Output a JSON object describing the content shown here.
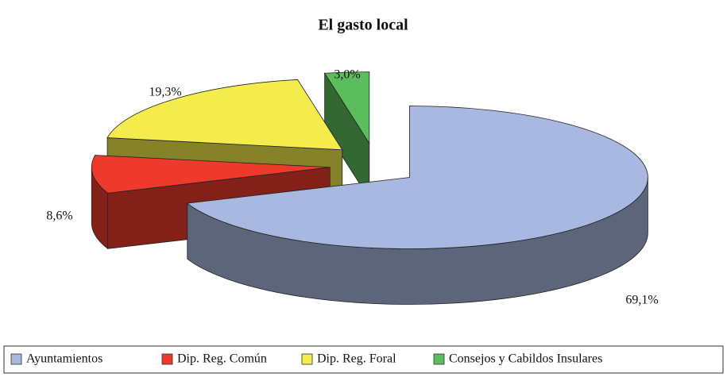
{
  "chart_data": {
    "type": "pie",
    "title": "El gasto local",
    "categories": [
      "Ayuntamientos",
      "Dip. Reg. Común",
      "Dip. Reg. Foral",
      "Consejos y Cabildos Insulares"
    ],
    "values": [
      69.1,
      8.6,
      19.3,
      3.0
    ],
    "value_labels": [
      "69,1%",
      "8,6%",
      "19,3%",
      "3,0%"
    ],
    "colors": [
      "#a9b8e0",
      "#ee3a2c",
      "#f4ec4c",
      "#5cbd5c"
    ],
    "legend": "bottom"
  }
}
